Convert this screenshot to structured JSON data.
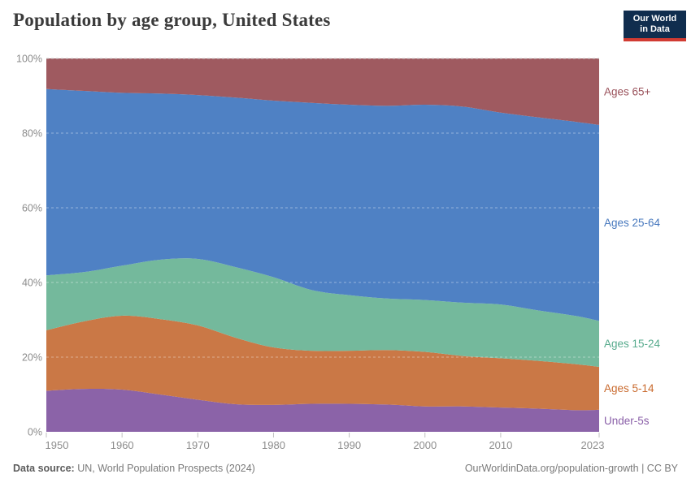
{
  "header": {
    "title": "Population by age group, United States",
    "logo_line1": "Our World",
    "logo_line2": "in Data"
  },
  "chart_data": {
    "type": "area",
    "stacked": true,
    "title": "Population by age group, United States",
    "unit": "%",
    "ylim": [
      0,
      100
    ],
    "grid": "horizontal-dashed",
    "legend_position": "right-of-bands",
    "x": [
      1950,
      1955,
      1960,
      1965,
      1970,
      1975,
      1980,
      1985,
      1990,
      1995,
      2000,
      2005,
      2010,
      2015,
      2020,
      2023
    ],
    "xticks": [
      1950,
      1960,
      1970,
      1980,
      1990,
      2000,
      2010,
      2023
    ],
    "yticks": [
      0,
      20,
      40,
      60,
      80,
      100
    ],
    "ytick_suffix": "%",
    "series": [
      {
        "name": "Under-5s",
        "fill": "#8b63a8",
        "label_color": "#8a5fa8",
        "values": [
          11.0,
          11.5,
          11.3,
          10.0,
          8.6,
          7.4,
          7.2,
          7.5,
          7.5,
          7.3,
          6.8,
          6.8,
          6.5,
          6.2,
          5.8,
          5.9
        ]
      },
      {
        "name": "Ages 5-14",
        "fill": "#ca7846",
        "label_color": "#c96a2e",
        "values": [
          16.2,
          18.1,
          19.8,
          20.2,
          19.9,
          17.8,
          15.4,
          14.2,
          14.2,
          14.6,
          14.6,
          13.5,
          13.2,
          12.8,
          12.3,
          11.5
        ]
      },
      {
        "name": "Ages 15-24",
        "fill": "#74b99c",
        "label_color": "#57ab8d",
        "values": [
          14.7,
          13.2,
          13.4,
          15.9,
          17.8,
          18.9,
          18.8,
          16.3,
          14.9,
          13.8,
          13.9,
          14.3,
          14.4,
          13.5,
          12.9,
          12.3
        ]
      },
      {
        "name": "Ages 25-64",
        "fill": "#4f81c4",
        "label_color": "#4879be",
        "values": [
          49.9,
          48.5,
          46.3,
          44.5,
          43.9,
          45.4,
          47.3,
          50.1,
          51.0,
          51.6,
          52.3,
          52.5,
          51.4,
          51.7,
          52.0,
          52.5
        ]
      },
      {
        "name": "Ages 65+",
        "fill": "#9f5a60",
        "label_color": "#9a525b",
        "values": [
          8.2,
          8.7,
          9.2,
          9.4,
          9.8,
          10.5,
          11.3,
          11.9,
          12.4,
          12.7,
          12.4,
          12.9,
          14.5,
          15.8,
          17.0,
          17.8
        ]
      }
    ]
  },
  "footer": {
    "source_label": "Data source:",
    "source_text": "UN, World Population Prospects (2024)",
    "credit": "OurWorldinData.org/population-growth | CC BY"
  }
}
